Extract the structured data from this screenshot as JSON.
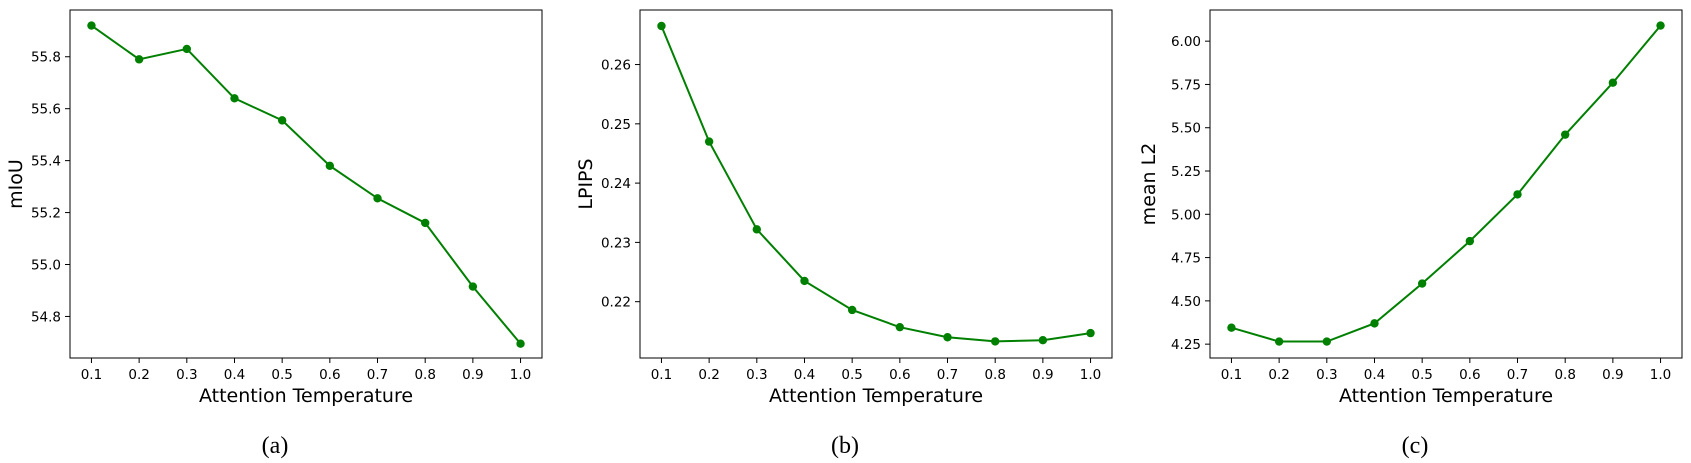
{
  "chart_data": [
    {
      "type": "line",
      "caption": "(a)",
      "xlabel": "Attention Temperature",
      "ylabel": "mIoU",
      "x": [
        0.1,
        0.2,
        0.3,
        0.4,
        0.5,
        0.6,
        0.7,
        0.8,
        0.9,
        1.0
      ],
      "x_ticks": [
        "0.1",
        "0.2",
        "0.3",
        "0.4",
        "0.5",
        "0.6",
        "0.7",
        "0.8",
        "0.9",
        "1.0"
      ],
      "xlim": [
        0.055,
        1.045
      ],
      "y_ticks": [
        54.8,
        55.0,
        55.2,
        55.4,
        55.6,
        55.8
      ],
      "y_tick_labels": [
        "54.8",
        "55.0",
        "55.2",
        "55.4",
        "55.6",
        "55.8"
      ],
      "ylim": [
        54.64,
        55.98
      ],
      "series": [
        {
          "values": [
            55.92,
            55.79,
            55.83,
            55.64,
            55.555,
            55.38,
            55.255,
            55.16,
            54.915,
            54.695
          ],
          "color": "#008000"
        }
      ],
      "grid": false
    },
    {
      "type": "line",
      "caption": "(b)",
      "xlabel": "Attention Temperature",
      "ylabel": "LPIPS",
      "x": [
        0.1,
        0.2,
        0.3,
        0.4,
        0.5,
        0.6,
        0.7,
        0.8,
        0.9,
        1.0
      ],
      "x_ticks": [
        "0.1",
        "0.2",
        "0.3",
        "0.4",
        "0.5",
        "0.6",
        "0.7",
        "0.8",
        "0.9",
        "1.0"
      ],
      "xlim": [
        0.055,
        1.045
      ],
      "y_ticks": [
        0.22,
        0.23,
        0.24,
        0.25,
        0.26
      ],
      "y_tick_labels": [
        "0.22",
        "0.23",
        "0.24",
        "0.25",
        "0.26"
      ],
      "ylim": [
        0.2105,
        0.2692
      ],
      "series": [
        {
          "values": [
            0.2665,
            0.247,
            0.2322,
            0.2235,
            0.2186,
            0.2157,
            0.214,
            0.2133,
            0.2135,
            0.2147
          ],
          "color": "#008000"
        }
      ],
      "grid": false
    },
    {
      "type": "line",
      "caption": "(c)",
      "xlabel": "Attention Temperature",
      "ylabel": "mean L2",
      "x": [
        0.1,
        0.2,
        0.3,
        0.4,
        0.5,
        0.6,
        0.7,
        0.8,
        0.9,
        1.0
      ],
      "x_ticks": [
        "0.1",
        "0.2",
        "0.3",
        "0.4",
        "0.5",
        "0.6",
        "0.7",
        "0.8",
        "0.9",
        "1.0"
      ],
      "xlim": [
        0.055,
        1.045
      ],
      "y_ticks": [
        4.25,
        4.5,
        4.75,
        5.0,
        5.25,
        5.5,
        5.75,
        6.0
      ],
      "y_tick_labels": [
        "4.25",
        "4.50",
        "4.75",
        "5.00",
        "5.25",
        "5.50",
        "5.75",
        "6.00"
      ],
      "ylim": [
        4.17,
        6.18
      ],
      "series": [
        {
          "values": [
            4.345,
            4.265,
            4.265,
            4.37,
            4.6,
            4.845,
            5.115,
            5.46,
            5.76,
            6.09
          ],
          "color": "#008000"
        }
      ],
      "grid": false
    }
  ]
}
